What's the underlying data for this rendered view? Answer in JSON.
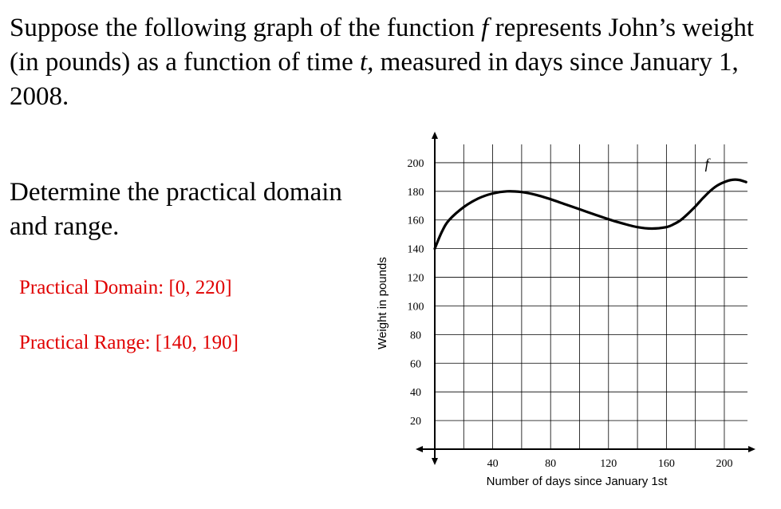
{
  "intro": {
    "part1": "Suppose the following graph of the function ",
    "func": "f",
    "part2": " represents John’s weight (in pounds) as a function of time ",
    "var": "t,",
    "part3": " measured in days since January 1, 2008."
  },
  "question": "Determine the practical domain and range.",
  "answers": {
    "domain": "Practical Domain: [0, 220]",
    "range": "Practical Range: [140, 190]"
  },
  "colors": {
    "answer": "#e00000",
    "curve": "#000000",
    "grid": "#000000"
  },
  "chart_data": {
    "type": "line",
    "xlabel": "Number of days since January 1st",
    "ylabel": "Weight in pounds",
    "xlim": [
      0,
      216
    ],
    "ylim": [
      0,
      215
    ],
    "x_ticks": [
      40,
      80,
      120,
      160,
      200
    ],
    "y_ticks": [
      20,
      40,
      60,
      80,
      100,
      120,
      140,
      160,
      180,
      200
    ],
    "grid": true,
    "series": [
      {
        "name": "f",
        "x": [
          0,
          5,
          10,
          20,
          30,
          40,
          50,
          60,
          70,
          80,
          90,
          100,
          110,
          120,
          130,
          140,
          150,
          160,
          165,
          170,
          175,
          180,
          185,
          190,
          195,
          200,
          205,
          210,
          215
        ],
        "y": [
          140,
          152,
          160,
          169,
          175,
          178.5,
          180,
          179.5,
          177.5,
          174.5,
          171,
          167.5,
          164,
          160.5,
          157.5,
          155,
          154,
          155,
          157,
          160,
          164.5,
          169.5,
          175,
          180,
          184,
          186.5,
          188,
          188,
          186.5
        ]
      }
    ]
  }
}
